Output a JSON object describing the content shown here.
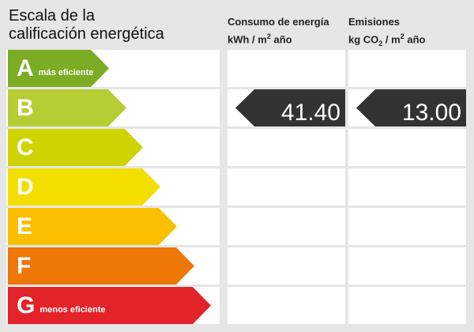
{
  "title": {
    "line1": "Escala de la",
    "line2": "calificación energética"
  },
  "consumo": {
    "label": "Consumo de energía",
    "unit_prefix": "kWh / m",
    "unit_sup": "2",
    "unit_suffix": " año",
    "value": "41.40",
    "rating": "B"
  },
  "emisiones": {
    "label": "Emisiones",
    "unit_prefix": "kg CO",
    "unit_sub": "2",
    "unit_mid": " / m",
    "unit_sup": "2",
    "unit_suffix": " año",
    "value": "13.00",
    "rating": "B"
  },
  "scale": [
    {
      "letter": "A",
      "note": "más eficiente",
      "color": "#7bac24"
    },
    {
      "letter": "B",
      "note": "",
      "color": "#b6cd33"
    },
    {
      "letter": "C",
      "note": "",
      "color": "#cfd400"
    },
    {
      "letter": "D",
      "note": "",
      "color": "#f2df00"
    },
    {
      "letter": "E",
      "note": "",
      "color": "#fbbf00"
    },
    {
      "letter": "F",
      "note": "",
      "color": "#ee7708"
    },
    {
      "letter": "G",
      "note": "menos eficiente",
      "color": "#e3232a"
    }
  ]
}
